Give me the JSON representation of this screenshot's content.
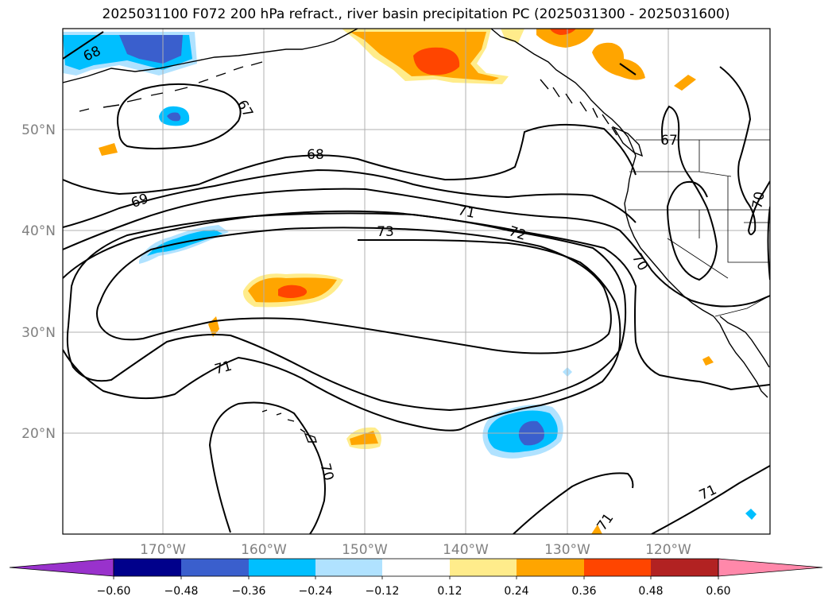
{
  "title": "2025031100 F072 200 hPa refract., river basin precipitation PC (2025031300 - 2025031600)",
  "lat_labels": [
    "50°N",
    "40°N",
    "30°N",
    "20°N"
  ],
  "lon_labels": [
    "170°W",
    "160°W",
    "150°W",
    "140°W",
    "130°W",
    "120°W"
  ],
  "contour_labels": [
    "68",
    "67",
    "68",
    "69",
    "71",
    "73",
    "72",
    "70",
    "67",
    "70",
    "71",
    "70",
    "71",
    "71"
  ],
  "colorbar": {
    "ticks": [
      "−0.60",
      "−0.48",
      "−0.36",
      "−0.24",
      "−0.12",
      "0.12",
      "0.24",
      "0.36",
      "0.48",
      "0.60"
    ],
    "colors": [
      "#9932cc",
      "#00008b",
      "#3a5fcd",
      "#00bfff",
      "#b0e2ff",
      "#ffffff",
      "#ffec8b",
      "#ffa500",
      "#ff4500",
      "#b22222",
      "#ff88aa"
    ]
  },
  "colors": {
    "neg_strong": "#3a5fcd",
    "neg_mid": "#00bfff",
    "neg_light": "#b0e2ff",
    "pos_light": "#ffec8b",
    "pos_mid": "#ffa500",
    "pos_strong": "#ff4500"
  }
}
